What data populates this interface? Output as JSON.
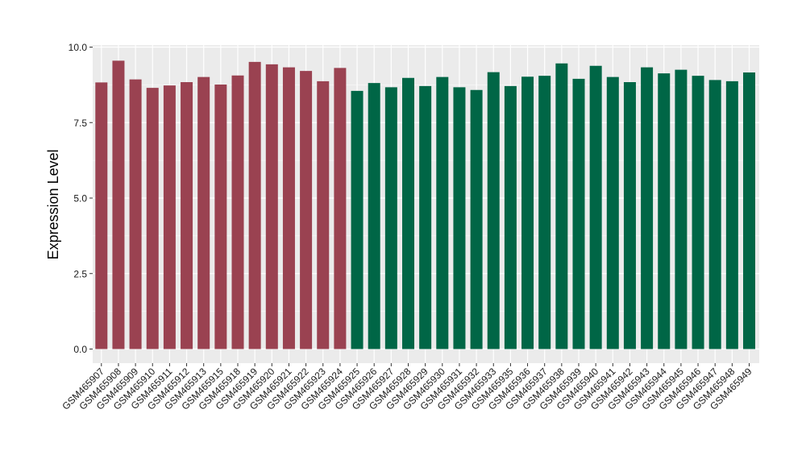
{
  "chart_data": {
    "type": "bar",
    "xlabel": "",
    "ylabel": "Expression Level",
    "ylim": [
      0,
      10
    ],
    "yticks": [
      "0.0",
      "2.5",
      "5.0",
      "7.5",
      "10.0"
    ],
    "grid": true,
    "legend": "none",
    "colors": {
      "panel_background": "#ebebeb",
      "gridline": "#ffffff",
      "group_1": "#9a4251",
      "group_2": "#006646"
    },
    "categories": [
      "GSM465907",
      "GSM465908",
      "GSM465909",
      "GSM465910",
      "GSM465911",
      "GSM465912",
      "GSM465913",
      "GSM465915",
      "GSM465918",
      "GSM465919",
      "GSM465920",
      "GSM465921",
      "GSM465922",
      "GSM465923",
      "GSM465924",
      "GSM465925",
      "GSM465926",
      "GSM465927",
      "GSM465928",
      "GSM465929",
      "GSM465930",
      "GSM465931",
      "GSM465932",
      "GSM465933",
      "GSM465935",
      "GSM465936",
      "GSM465937",
      "GSM465938",
      "GSM465939",
      "GSM465940",
      "GSM465941",
      "GSM465942",
      "GSM465943",
      "GSM465944",
      "GSM465945",
      "GSM465946",
      "GSM465947",
      "GSM465948",
      "GSM465949"
    ],
    "values": [
      8.83,
      9.55,
      8.93,
      8.65,
      8.73,
      8.84,
      9.01,
      8.76,
      9.06,
      9.51,
      9.43,
      9.33,
      9.21,
      8.87,
      9.31,
      8.55,
      8.81,
      8.67,
      8.98,
      8.71,
      9.01,
      8.67,
      8.58,
      9.17,
      8.71,
      9.02,
      9.05,
      9.46,
      8.95,
      9.38,
      9.01,
      8.84,
      9.33,
      9.13,
      9.25,
      9.05,
      8.91,
      8.87,
      9.16
    ],
    "group_of_bar": [
      1,
      1,
      1,
      1,
      1,
      1,
      1,
      1,
      1,
      1,
      1,
      1,
      1,
      1,
      1,
      2,
      2,
      2,
      2,
      2,
      2,
      2,
      2,
      2,
      2,
      2,
      2,
      2,
      2,
      2,
      2,
      2,
      2,
      2,
      2,
      2,
      2,
      2,
      2
    ]
  }
}
